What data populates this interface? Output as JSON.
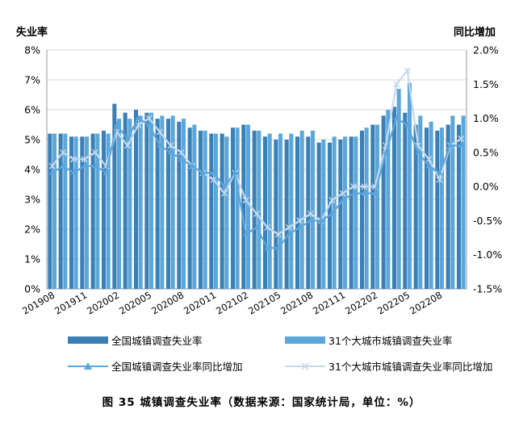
{
  "caption": "图 35 城镇调查失业率（数据来源：国家统计局，单位：%）",
  "chart_data": {
    "type": "bar+line",
    "ylabel_left": "失业率",
    "ylabel_right": "同比增加",
    "ylim_left": [
      0,
      8
    ],
    "ylim_right": [
      -1.5,
      2.0
    ],
    "yticks_left": [
      "0%",
      "1%",
      "2%",
      "3%",
      "4%",
      "5%",
      "6%",
      "7%",
      "8%"
    ],
    "yticks_right": [
      "-1.5%",
      "-1.0%",
      "-0.5%",
      "0.0%",
      "0.5%",
      "1.0%",
      "1.5%",
      "2.0%"
    ],
    "grid": "horizontal",
    "legend_position": "bottom",
    "xtick_labels": [
      "201908",
      "201911",
      "202002",
      "202005",
      "202008",
      "202011",
      "202102",
      "202105",
      "202108",
      "202111",
      "202202",
      "202205",
      "202208"
    ],
    "categories": [
      "201908",
      "201909",
      "201910",
      "201911",
      "201912",
      "202001",
      "202002",
      "202003",
      "202004",
      "202005",
      "202006",
      "202007",
      "202008",
      "202009",
      "202010",
      "202011",
      "202012",
      "202101",
      "202102",
      "202103",
      "202104",
      "202105",
      "202106",
      "202107",
      "202108",
      "202109",
      "202110",
      "202111",
      "202112",
      "202201",
      "202202",
      "202203",
      "202204",
      "202205",
      "202206",
      "202207",
      "202208",
      "202209",
      "202210"
    ],
    "series": [
      {
        "name": "全国城镇调查失业率",
        "type": "bar",
        "color": "#3a7fb5",
        "values": [
          5.2,
          5.2,
          5.1,
          5.1,
          5.2,
          5.3,
          6.2,
          5.9,
          6.0,
          5.9,
          5.7,
          5.7,
          5.6,
          5.4,
          5.3,
          5.2,
          5.2,
          5.4,
          5.5,
          5.3,
          5.1,
          5.0,
          5.0,
          5.1,
          5.1,
          4.9,
          4.9,
          5.0,
          5.1,
          5.3,
          5.5,
          5.8,
          6.1,
          5.9,
          5.5,
          5.4,
          5.3,
          5.5,
          5.5
        ]
      },
      {
        "name": "31个大城市城镇调查失业率",
        "type": "bar",
        "color": "#5ba7dc",
        "values": [
          5.2,
          5.2,
          5.1,
          5.1,
          5.2,
          5.2,
          5.7,
          5.7,
          5.8,
          5.9,
          5.8,
          5.8,
          5.7,
          5.5,
          5.3,
          5.2,
          5.1,
          5.4,
          5.5,
          5.3,
          5.2,
          5.2,
          5.2,
          5.3,
          5.3,
          5.0,
          5.1,
          5.1,
          5.1,
          5.4,
          5.5,
          6.0,
          6.7,
          6.9,
          5.8,
          5.6,
          5.4,
          5.8,
          5.8
        ]
      },
      {
        "name": "全国城镇调查失业率同比增加",
        "type": "line",
        "color": "#5ba7dc",
        "marker": "triangle",
        "values": [
          0.2,
          0.3,
          0.2,
          0.3,
          0.3,
          0.2,
          0.9,
          0.7,
          1.0,
          0.9,
          0.6,
          0.5,
          0.4,
          0.3,
          0.2,
          0.2,
          0.0,
          0.2,
          -0.7,
          -0.6,
          -0.9,
          -0.9,
          -0.7,
          -0.6,
          -0.5,
          -0.5,
          -0.4,
          -0.2,
          -0.1,
          -0.1,
          -0.1,
          0.5,
          1.0,
          0.9,
          0.5,
          0.3,
          0.2,
          0.6,
          0.6
        ]
      },
      {
        "name": "31个大城市城镇调查失业率同比增加",
        "type": "line",
        "color": "#c5d9ee",
        "marker": "x",
        "values": [
          0.3,
          0.5,
          0.4,
          0.4,
          0.5,
          0.3,
          0.8,
          0.6,
          0.9,
          1.0,
          0.8,
          0.6,
          0.5,
          0.3,
          0.2,
          0.1,
          -0.1,
          0.2,
          -0.2,
          -0.4,
          -0.6,
          -0.7,
          -0.6,
          -0.5,
          -0.4,
          -0.5,
          -0.2,
          -0.1,
          0.0,
          0.0,
          0.0,
          0.6,
          1.5,
          1.7,
          0.6,
          0.4,
          0.1,
          0.6,
          0.7
        ]
      }
    ]
  }
}
